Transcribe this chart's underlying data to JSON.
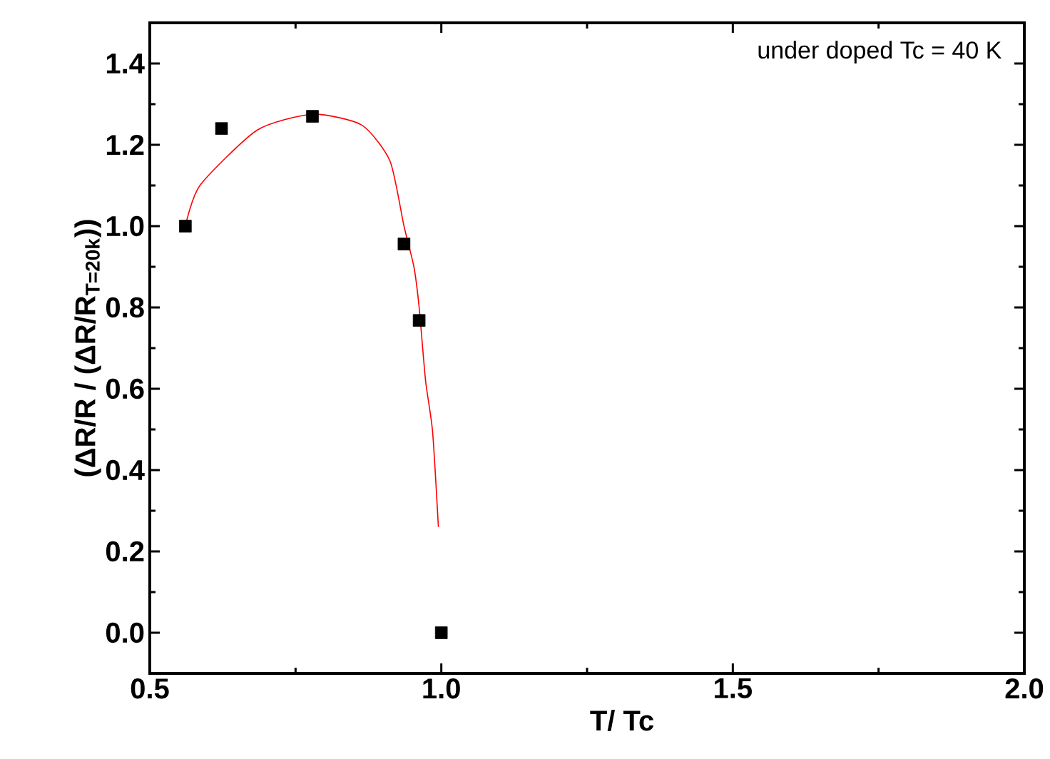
{
  "chart_data": {
    "type": "scatter",
    "xlabel": "T/ Tc",
    "ylabel": "(ΔR/R / (ΔR/R$_{T=20k}$))",
    "annotations": [
      "under doped Tc = 40 K"
    ],
    "xlim": [
      0.5,
      2.0
    ],
    "xticks": [
      {
        "value": 0.5,
        "label": "0.5"
      },
      {
        "value": 1.0,
        "label": "1.0"
      },
      {
        "value": 1.5,
        "label": "1.5"
      },
      {
        "value": 2.0,
        "label": "2.0"
      }
    ],
    "ylim": [
      -0.1,
      1.5
    ],
    "yticks": [
      {
        "value": 0.0,
        "label": "0.0"
      },
      {
        "value": 0.2,
        "label": "0.2"
      },
      {
        "value": 0.4,
        "label": "0.4"
      },
      {
        "value": 0.6,
        "label": "0.6"
      },
      {
        "value": 0.8,
        "label": "0.8"
      },
      {
        "value": 1.0,
        "label": "1.0"
      },
      {
        "value": 1.2,
        "label": "1.2"
      },
      {
        "value": 1.4,
        "label": "1.4"
      }
    ],
    "grid": false,
    "series": [
      {
        "marker": "square",
        "color": "#000000",
        "x": [
          0.561,
          0.623,
          0.779,
          0.936,
          0.962,
          1.0
        ],
        "values": [
          1.0,
          1.24,
          1.27,
          0.956,
          0.768,
          0.0
        ]
      },
      {
        "type": "line",
        "marker": "none",
        "color": "#ff0000",
        "x": [
          0.561,
          0.586,
          0.684,
          0.779,
          0.863,
          0.912,
          0.936,
          0.953,
          0.962,
          0.973,
          0.985,
          0.995
        ],
        "values": [
          1.0,
          1.1,
          1.236,
          1.275,
          1.249,
          1.16,
          1.0,
          0.9,
          0.8,
          0.62,
          0.495,
          0.26
        ]
      }
    ]
  }
}
